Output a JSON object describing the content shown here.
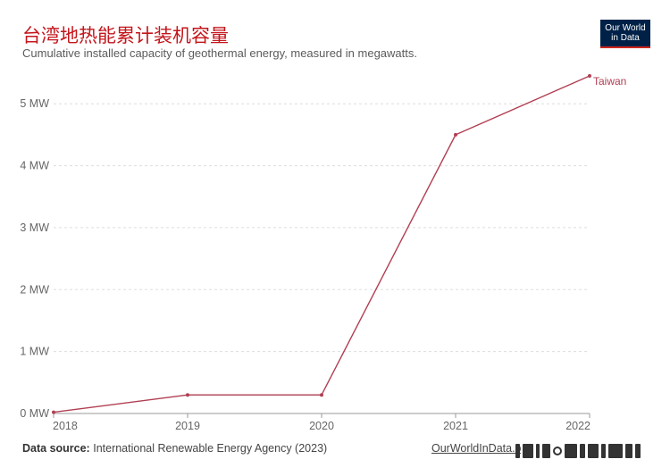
{
  "title": "台湾地热能累计装机容量",
  "subtitle": "Cumulative installed capacity of geothermal energy, measured in megawatts.",
  "logo": {
    "line1": "Our World",
    "line2": "in Data"
  },
  "footer": {
    "source_label": "Data source:",
    "source_text": "International Renewable Energy Agency (2023)",
    "site": "OurWorldInData.org"
  },
  "colors": {
    "series": "#b13f52",
    "title": "#c4161c",
    "logo_bg": "#002147"
  },
  "chart_data": {
    "type": "line",
    "title": "台湾地热能累计装机容量",
    "subtitle": "Cumulative installed capacity of geothermal energy, measured in megawatts.",
    "x": [
      2018,
      2019,
      2020,
      2021,
      2022
    ],
    "xlim": [
      2018,
      2022
    ],
    "ylim": [
      0,
      5.45
    ],
    "y_ticks": [
      {
        "value": 0,
        "label": "0 MW"
      },
      {
        "value": 1,
        "label": "1 MW"
      },
      {
        "value": 2,
        "label": "2 MW"
      },
      {
        "value": 3,
        "label": "3 MW"
      },
      {
        "value": 4,
        "label": "4 MW"
      },
      {
        "value": 5,
        "label": "5 MW"
      }
    ],
    "x_ticks": [
      "2018",
      "2019",
      "2020",
      "2021",
      "2022"
    ],
    "grid": true,
    "series": [
      {
        "name": "Taiwan",
        "values": [
          0.02,
          0.3,
          0.3,
          4.5,
          5.45
        ]
      }
    ]
  }
}
